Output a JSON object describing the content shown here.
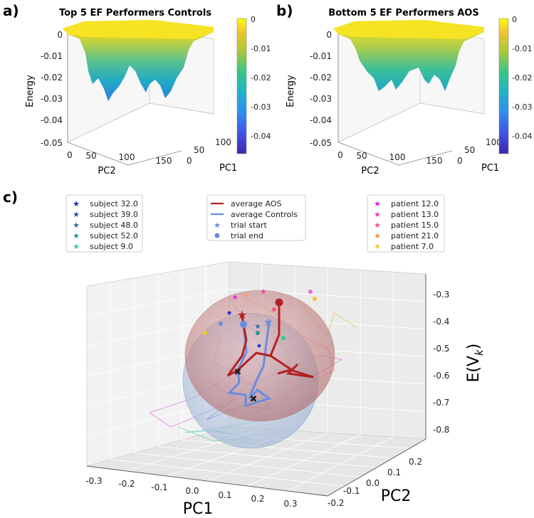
{
  "panels": {
    "a": {
      "label": "a)",
      "title": "Top 5 EF Performers Controls"
    },
    "b": {
      "label": "b)",
      "title": "Bottom 5 EF Performers AOS"
    },
    "c": {
      "label": "c)"
    }
  },
  "chart_data": [
    {
      "type": "surface3d",
      "title": "Top 5 EF Performers Controls",
      "zlabel": "Energy",
      "xlabel": "PC2",
      "ylabel": "PC1",
      "zlim": [
        -0.05,
        0
      ],
      "z_ticks": [
        "0",
        "-0.01",
        "-0.02",
        "-0.03",
        "-0.04",
        "-0.05"
      ],
      "x_ticks": [
        "0",
        "50",
        "100",
        "150"
      ],
      "y_ticks": [
        "0",
        "50",
        "100"
      ],
      "colorbar_ticks": [
        "0",
        "-0.01",
        "-0.02",
        "-0.03",
        "-0.04"
      ],
      "colormap": "parula",
      "min_energy": -0.031
    },
    {
      "type": "surface3d",
      "title": "Bottom 5 EF Performers AOS",
      "zlabel": "Energy",
      "xlabel": "PC2",
      "ylabel": "PC1",
      "zlim": [
        -0.05,
        0
      ],
      "z_ticks": [
        "0",
        "-0.01",
        "-0.02",
        "-0.03",
        "-0.04",
        "-0.05"
      ],
      "x_ticks": [
        "0",
        "50",
        "100",
        "150"
      ],
      "y_ticks": [
        "0",
        "50",
        "100"
      ],
      "colorbar_ticks": [
        "0",
        "-0.01",
        "-0.02",
        "-0.03",
        "-0.04"
      ],
      "colormap": "parula",
      "min_energy": -0.023
    },
    {
      "type": "scatter3d",
      "xlabel": "PC1",
      "ylabel": "PC2",
      "zlabel": "E(V_k)",
      "zlabel_main": "E(V",
      "zlabel_sub": "k",
      "zlabel_close": ")",
      "x_ticks": [
        "-0.3",
        "-0.2",
        "-0.1",
        "0.0",
        "0.1",
        "0.2",
        "0.3"
      ],
      "y_ticks": [
        "-0.2",
        "-0.1",
        "0.0",
        "0.1",
        "0.2"
      ],
      "z_ticks": [
        "-0.3",
        "-0.4",
        "-0.5",
        "-0.6",
        "-0.7",
        "-0.8"
      ],
      "legend_subjects": [
        {
          "label": "subject 32.0",
          "color": "#1f1fd6"
        },
        {
          "label": "subject 39.0",
          "color": "#1f4fc0"
        },
        {
          "label": "subject 48.0",
          "color": "#1f6fa8"
        },
        {
          "label": "subject 52.0",
          "color": "#1f9a96"
        },
        {
          "label": "subject 9.0",
          "color": "#2fd08a"
        }
      ],
      "legend_average": [
        {
          "label": "average AOS",
          "color": "#b22222",
          "kind": "line"
        },
        {
          "label": "average Controls",
          "color": "#6a8ce0",
          "kind": "line"
        },
        {
          "label": "trial start",
          "color": "#6a8ce0",
          "kind": "star"
        },
        {
          "label": "trial end",
          "color": "#6a8ce0",
          "kind": "dot"
        }
      ],
      "legend_patients": [
        {
          "label": "patient 12.0",
          "color": "#e01ee0"
        },
        {
          "label": "patient 13.0",
          "color": "#e83aa8"
        },
        {
          "label": "patient 15.0",
          "color": "#f05a78"
        },
        {
          "label": "patient 21.0",
          "color": "#f0904a"
        },
        {
          "label": "patient 7.0",
          "color": "#f0c830"
        }
      ]
    }
  ]
}
